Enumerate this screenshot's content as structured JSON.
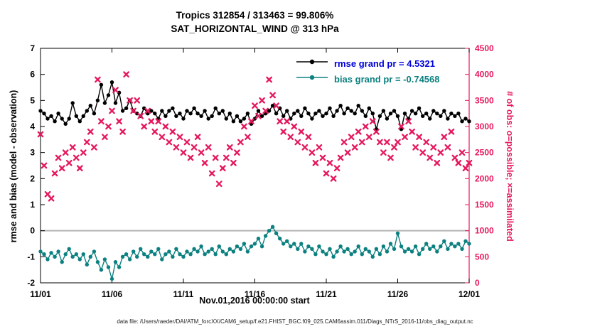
{
  "figure": {
    "title_line1": "Tropics 312854 / 313463 = 99.806%",
    "title_line2": "SAT_HORIZONTAL_WIND @ 313 hPa",
    "caption": "data file: /Users/raeder/DAI/ATM_forcXX/CAM6_setup/f.e21.FHIST_BGC.f09_025.CAM6assim.011/Diags_NTrS_2016-11/obs_diag_output.nc"
  },
  "chart_data": {
    "type": "line",
    "title": "Tropics 312854 / 313463 = 99.806% / SAT_HORIZONTAL_WIND @ 313 hPa",
    "xlabel": "Nov.01,2016 00:00:00 start",
    "ylabel_left": "rmse and bias (model - observation)",
    "ylabel_right": "# of obs: o=possible; ×=assimilated",
    "grid": false,
    "legend_position": "upper-right-inside",
    "zero_line_color": "#b5b5b5",
    "y_left": {
      "min": -2,
      "max": 7,
      "ticks": [
        -2,
        -1,
        0,
        1,
        2,
        3,
        4,
        5,
        6,
        7
      ]
    },
    "y_right": {
      "min": 0,
      "max": 4500,
      "ticks": [
        0,
        500,
        1000,
        1500,
        2000,
        2500,
        3000,
        3500,
        4000,
        4500
      ]
    },
    "x_ticks": {
      "positions": [
        0,
        20,
        40,
        60,
        80,
        100,
        120
      ],
      "labels": [
        "11/01",
        "11/06",
        "11/11",
        "11/16",
        "11/21",
        "11/26",
        "12/01"
      ]
    },
    "series": [
      {
        "name": "rmse",
        "legend": "rmse grand pr = 4.5321",
        "grand_value": 4.5321,
        "color": "#000000",
        "legend_color": "#0000dd",
        "axis": "left",
        "line": true,
        "marker": "circle",
        "values": [
          4.6,
          4.5,
          4.3,
          4.4,
          4.2,
          4.5,
          4.3,
          4.1,
          4.3,
          4.9,
          4.4,
          4.2,
          4.4,
          4.6,
          4.8,
          4.5,
          5.0,
          5.6,
          4.9,
          5.2,
          5.7,
          4.9,
          5.3,
          4.6,
          4.7,
          5.0,
          4.6,
          4.5,
          4.4,
          4.7,
          4.5,
          4.6,
          4.5,
          4.3,
          4.6,
          4.4,
          4.6,
          4.7,
          4.4,
          4.5,
          4.3,
          4.6,
          4.5,
          4.7,
          4.5,
          4.4,
          4.6,
          4.3,
          4.4,
          4.7,
          4.5,
          4.6,
          4.3,
          4.5,
          4.2,
          4.4,
          4.2,
          4.3,
          4.5,
          4.1,
          4.3,
          4.6,
          4.4,
          4.5,
          4.6,
          4.8,
          4.5,
          4.7,
          4.4,
          4.6,
          4.3,
          4.5,
          4.6,
          4.4,
          4.7,
          4.5,
          4.3,
          4.5,
          4.6,
          4.4,
          4.5,
          4.7,
          4.4,
          4.6,
          4.8,
          4.5,
          4.7,
          4.6,
          4.5,
          4.8,
          4.6,
          4.4,
          4.7,
          4.5,
          3.9,
          4.4,
          4.6,
          4.3,
          4.5,
          4.6,
          4.4,
          3.9,
          4.5,
          4.3,
          4.6,
          4.5,
          4.7,
          4.4,
          4.5,
          4.3,
          4.6,
          4.5,
          4.4,
          4.6,
          4.3,
          4.5,
          4.4,
          4.5,
          4.2,
          4.3,
          4.2
        ]
      },
      {
        "name": "bias",
        "legend": "bias grand pr = -0.74568",
        "grand_value": -0.74568,
        "color": "#0d8080",
        "legend_color": "#0d8080",
        "axis": "left",
        "line": true,
        "marker": "circle",
        "values": [
          -0.8,
          -0.9,
          -1.1,
          -0.85,
          -1.0,
          -0.8,
          -1.2,
          -0.9,
          -0.7,
          -1.0,
          -0.9,
          -1.1,
          -0.9,
          -1.3,
          -1.0,
          -0.8,
          -1.2,
          -1.5,
          -1.1,
          -1.4,
          -1.85,
          -1.2,
          -1.4,
          -1.0,
          -0.9,
          -1.1,
          -0.8,
          -1.0,
          -0.7,
          -0.9,
          -1.0,
          -0.8,
          -0.9,
          -0.7,
          -1.1,
          -0.9,
          -0.8,
          -1.0,
          -0.7,
          -0.9,
          -1.0,
          -0.8,
          -0.9,
          -0.7,
          -0.8,
          -0.6,
          -0.9,
          -0.8,
          -0.7,
          -0.9,
          -0.6,
          -0.8,
          -0.9,
          -0.7,
          -0.8,
          -0.6,
          -0.7,
          -0.5,
          -0.8,
          -0.6,
          -0.5,
          -0.3,
          -0.6,
          -0.2,
          0.0,
          0.15,
          -0.1,
          -0.3,
          -0.5,
          -0.4,
          -0.6,
          -0.5,
          -0.7,
          -0.5,
          -0.8,
          -0.6,
          -0.7,
          -0.9,
          -0.6,
          -0.8,
          -0.9,
          -0.7,
          -1.0,
          -0.8,
          -0.6,
          -0.8,
          -0.7,
          -0.9,
          -0.8,
          -0.6,
          -0.9,
          -0.7,
          -0.8,
          -1.0,
          -0.7,
          -0.9,
          -0.6,
          -0.8,
          -0.5,
          -0.7,
          -0.1,
          -0.6,
          -0.8,
          -0.7,
          -0.8,
          -0.6,
          -0.9,
          -0.7,
          -0.5,
          -0.7,
          -0.6,
          -0.8,
          -0.6,
          -0.4,
          -0.7,
          -0.5,
          -0.6,
          -0.5,
          -0.7,
          -0.4,
          -0.5
        ]
      },
      {
        "name": "obs_assimilated",
        "legend": "",
        "color": "#e5185d",
        "legend_color": "#e5185d",
        "axis": "right",
        "line": false,
        "marker": "x",
        "values": [
          2850,
          2250,
          1700,
          1620,
          2100,
          2400,
          2200,
          2500,
          2300,
          2600,
          2400,
          2200,
          2500,
          2700,
          2900,
          2600,
          3900,
          3100,
          2800,
          3000,
          3300,
          3700,
          3100,
          2900,
          4000,
          3500,
          3300,
          3500,
          3200,
          3000,
          3300,
          3100,
          2900,
          3100,
          2800,
          3000,
          2700,
          2900,
          2600,
          2800,
          2500,
          2700,
          2400,
          2600,
          2800,
          2500,
          2300,
          2600,
          2100,
          2400,
          1900,
          2200,
          2400,
          2600,
          2300,
          2500,
          2700,
          3000,
          2800,
          3100,
          3400,
          3200,
          3500,
          3300,
          3900,
          3600,
          3400,
          3100,
          2900,
          3100,
          2800,
          3000,
          2700,
          2900,
          2600,
          2800,
          2500,
          2300,
          2600,
          2400,
          2100,
          2300,
          2000,
          2200,
          2400,
          2700,
          2500,
          2800,
          2600,
          2900,
          2700,
          3000,
          2800,
          3100,
          2900,
          2700,
          2500,
          2700,
          2400,
          2600,
          2700,
          3000,
          2800,
          3100,
          2900,
          2600,
          2800,
          2500,
          2700,
          2400,
          2600,
          2300,
          2500,
          2800,
          2600,
          2900,
          2400,
          2300,
          2500,
          2200,
          2300
        ]
      }
    ]
  }
}
